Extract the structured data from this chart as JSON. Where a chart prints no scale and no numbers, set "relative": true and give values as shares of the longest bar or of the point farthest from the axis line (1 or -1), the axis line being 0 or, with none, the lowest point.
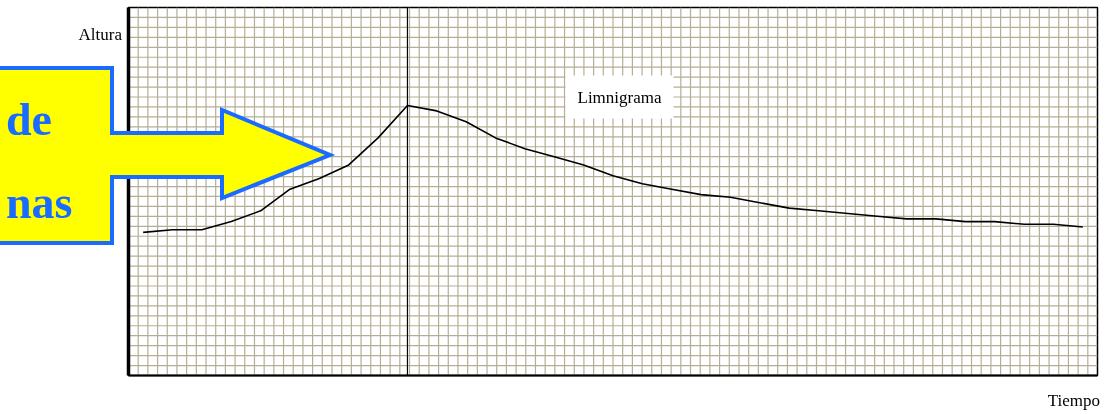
{
  "chart_data": {
    "type": "line",
    "relative": true,
    "xlabel": "Tiempo",
    "ylabel": "Altura",
    "grid": true,
    "annotations": [
      "de",
      "nas"
    ],
    "categories": [
      null,
      null,
      null,
      null,
      null,
      null,
      null,
      null,
      null,
      null,
      null,
      null,
      null,
      null,
      null,
      null,
      null,
      null,
      null,
      null,
      null,
      null,
      null,
      null,
      null,
      null,
      null,
      null,
      null,
      null,
      null,
      null,
      null
    ],
    "series": [
      {
        "name": "Limnigrama",
        "color": "#000000",
        "values": [
          0.53,
          0.54,
          0.54,
          0.57,
          0.61,
          0.69,
          0.73,
          0.78,
          0.88,
          1.0,
          0.98,
          0.94,
          0.88,
          0.84,
          0.81,
          0.78,
          0.74,
          0.71,
          0.69,
          0.67,
          0.66,
          0.64,
          0.62,
          0.61,
          0.6,
          0.59,
          0.58,
          0.58,
          0.57,
          0.57,
          0.56,
          0.56,
          0.55
        ]
      }
    ]
  }
}
